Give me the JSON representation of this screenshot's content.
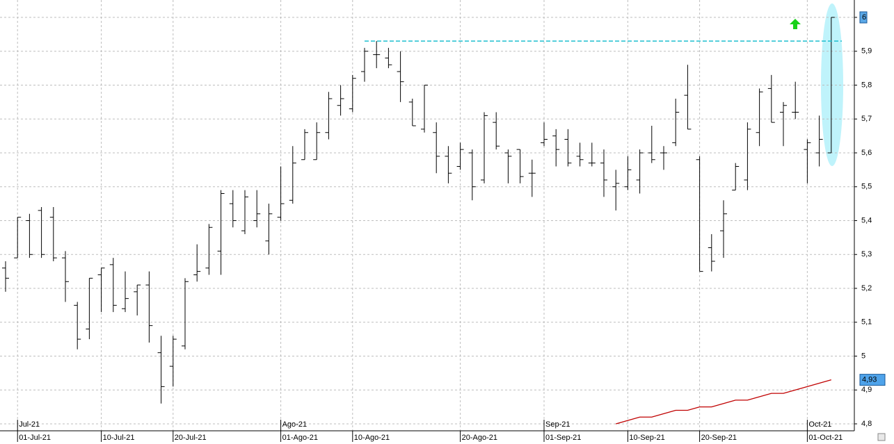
{
  "chart_data": {
    "type": "ohlc",
    "categories": [
      null,
      "01-Jul-21",
      null,
      null,
      null,
      null,
      null,
      null,
      "10-Jul-21",
      null,
      null,
      null,
      null,
      null,
      "20-Jul-21",
      null,
      null,
      null,
      null,
      null,
      null,
      null,
      null,
      "01-Ago-21",
      null,
      null,
      null,
      null,
      null,
      "10-Ago-21",
      null,
      null,
      null,
      null,
      null,
      null,
      null,
      null,
      "20-Ago-21",
      null,
      null,
      null,
      null,
      null,
      null,
      "01-Sep-21",
      null,
      null,
      null,
      null,
      null,
      null,
      "10-Sep-21",
      null,
      null,
      null,
      null,
      null,
      "20-Sep-21",
      null,
      null,
      null,
      null,
      null,
      null,
      null,
      null,
      "01-Oct-21",
      null,
      null
    ],
    "months": [
      null,
      "Jul-21",
      null,
      null,
      null,
      null,
      null,
      null,
      null,
      null,
      null,
      null,
      null,
      null,
      null,
      null,
      null,
      null,
      null,
      null,
      null,
      null,
      null,
      "Ago-21",
      null,
      null,
      null,
      null,
      null,
      null,
      null,
      null,
      null,
      null,
      null,
      null,
      null,
      null,
      null,
      null,
      null,
      null,
      null,
      null,
      null,
      "Sep-21",
      null,
      null,
      null,
      null,
      null,
      null,
      null,
      null,
      null,
      null,
      null,
      null,
      null,
      null,
      null,
      null,
      null,
      null,
      null,
      null,
      null,
      "Oct-21",
      null,
      null
    ],
    "open": [
      5.26,
      5.29,
      5.4,
      5.43,
      5.41,
      5.29,
      5.15,
      5.08,
      5.24,
      5.27,
      5.14,
      5.19,
      5.21,
      5.01,
      4.97,
      5.03,
      5.24,
      5.26,
      5.31,
      5.45,
      5.37,
      5.4,
      5.34,
      5.41,
      5.46,
      5.58,
      5.58,
      5.66,
      5.74,
      5.73,
      5.84,
      5.89,
      5.88,
      5.84,
      5.75,
      5.67,
      5.66,
      5.59,
      5.56,
      5.6,
      5.52,
      5.69,
      5.6,
      5.61,
      5.54,
      5.63,
      5.65,
      5.64,
      5.59,
      5.57,
      5.57,
      5.5,
      5.5,
      5.52,
      5.6,
      5.6,
      5.63,
      5.77,
      5.58,
      5.32,
      5.37,
      5.49,
      5.52,
      5.66,
      5.79,
      5.72,
      5.72,
      5.61,
      5.6,
      5.6
    ],
    "high": [
      5.28,
      5.41,
      5.42,
      5.44,
      5.44,
      5.31,
      5.16,
      5.23,
      5.26,
      5.29,
      5.25,
      5.21,
      5.25,
      5.06,
      5.06,
      5.23,
      5.33,
      5.39,
      5.49,
      5.49,
      5.49,
      5.49,
      5.45,
      5.56,
      5.62,
      5.67,
      5.69,
      5.78,
      5.8,
      5.83,
      5.91,
      5.93,
      5.91,
      5.9,
      5.76,
      5.8,
      5.69,
      5.62,
      5.63,
      5.61,
      5.72,
      5.72,
      5.61,
      5.61,
      5.58,
      5.69,
      5.67,
      5.67,
      5.63,
      5.63,
      5.61,
      5.55,
      5.59,
      5.61,
      5.68,
      5.62,
      5.76,
      5.86,
      5.59,
      5.36,
      5.46,
      5.57,
      5.69,
      5.79,
      5.83,
      5.75,
      5.81,
      5.64,
      5.71,
      6.0
    ],
    "low": [
      5.19,
      5.29,
      5.29,
      5.29,
      5.28,
      5.16,
      5.02,
      5.05,
      5.13,
      5.13,
      5.13,
      5.12,
      5.04,
      4.86,
      4.91,
      5.02,
      5.22,
      5.24,
      5.24,
      5.38,
      5.36,
      5.38,
      5.3,
      5.4,
      5.45,
      5.58,
      5.58,
      5.64,
      5.71,
      5.72,
      5.81,
      5.85,
      5.85,
      5.75,
      5.68,
      5.66,
      5.54,
      5.51,
      5.55,
      5.46,
      5.51,
      5.61,
      5.51,
      5.51,
      5.47,
      5.62,
      5.56,
      5.56,
      5.56,
      5.56,
      5.47,
      5.43,
      5.49,
      5.48,
      5.57,
      5.55,
      5.62,
      5.67,
      5.25,
      5.25,
      5.29,
      5.49,
      5.49,
      5.62,
      5.69,
      5.62,
      5.7,
      5.51,
      5.56,
      5.6
    ],
    "close": [
      5.23,
      5.41,
      5.3,
      5.3,
      5.29,
      5.22,
      5.05,
      5.23,
      5.26,
      5.15,
      5.17,
      5.21,
      5.09,
      4.91,
      5.05,
      5.22,
      5.25,
      5.38,
      5.48,
      5.4,
      5.47,
      5.42,
      5.42,
      5.45,
      5.57,
      5.66,
      5.66,
      5.76,
      5.76,
      5.82,
      5.9,
      5.89,
      5.86,
      5.81,
      5.68,
      5.8,
      5.59,
      5.54,
      5.61,
      5.5,
      5.71,
      5.62,
      5.59,
      5.53,
      5.54,
      5.64,
      5.61,
      5.57,
      5.58,
      5.57,
      5.52,
      5.51,
      5.55,
      5.6,
      5.58,
      5.6,
      5.72,
      5.67,
      5.25,
      5.28,
      5.42,
      5.56,
      5.67,
      5.78,
      5.69,
      5.74,
      5.72,
      5.63,
      5.64,
      6.0
    ],
    "ma": [
      null,
      null,
      null,
      null,
      null,
      null,
      null,
      null,
      null,
      null,
      null,
      null,
      null,
      null,
      null,
      null,
      null,
      null,
      null,
      null,
      null,
      null,
      null,
      null,
      null,
      null,
      null,
      null,
      null,
      null,
      null,
      null,
      null,
      null,
      null,
      null,
      null,
      null,
      null,
      null,
      null,
      null,
      null,
      null,
      null,
      null,
      null,
      null,
      null,
      null,
      null,
      4.8,
      4.81,
      4.82,
      4.82,
      4.83,
      4.84,
      4.84,
      4.85,
      4.85,
      4.86,
      4.87,
      4.87,
      4.88,
      4.89,
      4.89,
      4.9,
      4.91,
      4.92,
      4.93
    ],
    "ma_color": "#c00000",
    "bar_color": "#000000",
    "resistance": 5.93,
    "resistance_color": "#1fbfcf",
    "last_label": {
      "value": 6,
      "label": "6"
    },
    "ma_label": {
      "value": 4.93,
      "label": "4,93"
    },
    "ylim": [
      4.78,
      6.05
    ],
    "yticks": [
      {
        "value": 4.8,
        "label": "4,8"
      },
      {
        "value": 4.9,
        "label": "4,9"
      },
      5,
      {
        "value": 5.1,
        "label": "5,1"
      },
      {
        "value": 5.2,
        "label": "5,2"
      },
      {
        "value": 5.3,
        "label": "5,3"
      },
      {
        "value": 5.4,
        "label": "5,4"
      },
      {
        "value": 5.5,
        "label": "5,5"
      },
      {
        "value": 5.6,
        "label": "5,6"
      },
      {
        "value": 5.7,
        "label": "5,7"
      },
      {
        "value": 5.8,
        "label": "5,8"
      },
      {
        "value": 5.9,
        "label": "5,9"
      },
      6
    ],
    "grid": true
  }
}
